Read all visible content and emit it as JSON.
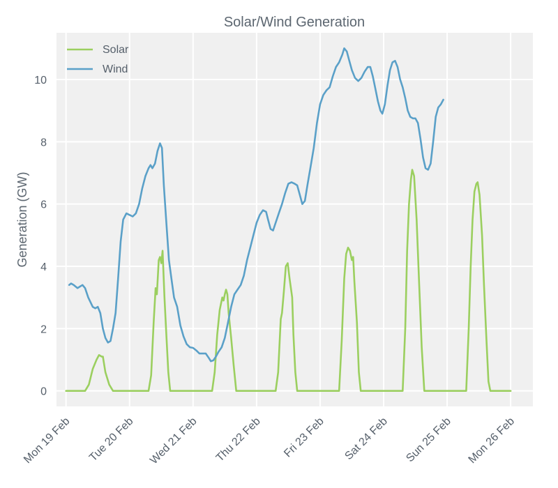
{
  "chart_data": {
    "type": "line",
    "title": "Solar/Wind Generation",
    "xlabel": "",
    "ylabel": "Generation (GW)",
    "ylim": [
      -0.5,
      11.5
    ],
    "xlim": [
      -0.15,
      7.35
    ],
    "yticks": [
      0,
      2,
      4,
      6,
      8,
      10
    ],
    "xticks": [
      {
        "value": 0,
        "label": "Mon 19 Feb"
      },
      {
        "value": 1,
        "label": "Tue 20 Feb"
      },
      {
        "value": 2,
        "label": "Wed 21 Feb"
      },
      {
        "value": 3,
        "label": "Thu 22 Feb"
      },
      {
        "value": 4,
        "label": "Fri 23 Feb"
      },
      {
        "value": 5,
        "label": "Sat 24 Feb"
      },
      {
        "value": 6,
        "label": "Sun 25 Feb"
      },
      {
        "value": 7,
        "label": "Mon 26 Feb"
      }
    ],
    "legend_position": "top-left",
    "grid": true,
    "series": [
      {
        "name": "Solar",
        "color": "#9bcf5f",
        "points": [
          [
            0.0,
            0
          ],
          [
            0.3,
            0
          ],
          [
            0.36,
            0.2
          ],
          [
            0.42,
            0.7
          ],
          [
            0.48,
            1.0
          ],
          [
            0.52,
            1.15
          ],
          [
            0.56,
            1.1
          ],
          [
            0.58,
            1.1
          ],
          [
            0.62,
            0.6
          ],
          [
            0.68,
            0.2
          ],
          [
            0.74,
            0
          ],
          [
            1.0,
            0
          ],
          [
            1.3,
            0
          ],
          [
            1.34,
            0.5
          ],
          [
            1.38,
            2.2
          ],
          [
            1.41,
            3.3
          ],
          [
            1.43,
            3.1
          ],
          [
            1.46,
            4.2
          ],
          [
            1.48,
            4.3
          ],
          [
            1.5,
            4.1
          ],
          [
            1.52,
            4.5
          ],
          [
            1.55,
            3.0
          ],
          [
            1.58,
            1.8
          ],
          [
            1.61,
            0.6
          ],
          [
            1.64,
            0
          ],
          [
            2.0,
            0
          ],
          [
            2.3,
            0
          ],
          [
            2.34,
            0.6
          ],
          [
            2.38,
            1.8
          ],
          [
            2.42,
            2.6
          ],
          [
            2.46,
            3.0
          ],
          [
            2.48,
            2.9
          ],
          [
            2.5,
            3.1
          ],
          [
            2.52,
            3.25
          ],
          [
            2.54,
            3.1
          ],
          [
            2.56,
            2.5
          ],
          [
            2.6,
            1.7
          ],
          [
            2.64,
            0.8
          ],
          [
            2.68,
            0
          ],
          [
            3.0,
            0
          ],
          [
            3.3,
            0
          ],
          [
            3.34,
            0.6
          ],
          [
            3.38,
            2.3
          ],
          [
            3.4,
            2.5
          ],
          [
            3.43,
            3.2
          ],
          [
            3.46,
            4.0
          ],
          [
            3.49,
            4.1
          ],
          [
            3.52,
            3.6
          ],
          [
            3.56,
            3.0
          ],
          [
            3.58,
            1.8
          ],
          [
            3.61,
            0.6
          ],
          [
            3.64,
            0
          ],
          [
            4.0,
            0
          ],
          [
            4.3,
            0
          ],
          [
            4.34,
            1.6
          ],
          [
            4.38,
            3.6
          ],
          [
            4.41,
            4.4
          ],
          [
            4.44,
            4.6
          ],
          [
            4.47,
            4.5
          ],
          [
            4.5,
            4.2
          ],
          [
            4.52,
            4.3
          ],
          [
            4.54,
            3.5
          ],
          [
            4.58,
            2.2
          ],
          [
            4.61,
            0.6
          ],
          [
            4.64,
            0
          ],
          [
            5.0,
            0
          ],
          [
            5.3,
            0
          ],
          [
            5.34,
            2.0
          ],
          [
            5.37,
            4.5
          ],
          [
            5.4,
            6.0
          ],
          [
            5.43,
            6.8
          ],
          [
            5.45,
            7.1
          ],
          [
            5.48,
            6.9
          ],
          [
            5.52,
            5.5
          ],
          [
            5.56,
            3.4
          ],
          [
            5.6,
            1.4
          ],
          [
            5.64,
            0
          ],
          [
            6.0,
            0
          ],
          [
            6.3,
            0
          ],
          [
            6.34,
            2.0
          ],
          [
            6.37,
            4.0
          ],
          [
            6.4,
            5.5
          ],
          [
            6.43,
            6.4
          ],
          [
            6.46,
            6.65
          ],
          [
            6.48,
            6.7
          ],
          [
            6.51,
            6.3
          ],
          [
            6.55,
            5.0
          ],
          [
            6.58,
            3.4
          ],
          [
            6.62,
            1.6
          ],
          [
            6.65,
            0.3
          ],
          [
            6.68,
            0
          ],
          [
            7.0,
            0
          ]
        ]
      },
      {
        "name": "Wind",
        "color": "#5aa0c8",
        "points": [
          [
            0.05,
            3.4
          ],
          [
            0.08,
            3.45
          ],
          [
            0.12,
            3.4
          ],
          [
            0.18,
            3.3
          ],
          [
            0.22,
            3.35
          ],
          [
            0.26,
            3.4
          ],
          [
            0.3,
            3.3
          ],
          [
            0.35,
            3.0
          ],
          [
            0.42,
            2.7
          ],
          [
            0.46,
            2.65
          ],
          [
            0.5,
            2.7
          ],
          [
            0.54,
            2.5
          ],
          [
            0.58,
            2.0
          ],
          [
            0.62,
            1.7
          ],
          [
            0.66,
            1.55
          ],
          [
            0.7,
            1.6
          ],
          [
            0.74,
            2.0
          ],
          [
            0.78,
            2.5
          ],
          [
            0.82,
            3.6
          ],
          [
            0.86,
            4.8
          ],
          [
            0.9,
            5.5
          ],
          [
            0.95,
            5.7
          ],
          [
            1.0,
            5.65
          ],
          [
            1.05,
            5.6
          ],
          [
            1.1,
            5.7
          ],
          [
            1.15,
            6.0
          ],
          [
            1.2,
            6.5
          ],
          [
            1.25,
            6.9
          ],
          [
            1.3,
            7.15
          ],
          [
            1.33,
            7.25
          ],
          [
            1.36,
            7.15
          ],
          [
            1.4,
            7.3
          ],
          [
            1.44,
            7.7
          ],
          [
            1.48,
            7.95
          ],
          [
            1.51,
            7.8
          ],
          [
            1.54,
            6.6
          ],
          [
            1.58,
            5.4
          ],
          [
            1.62,
            4.2
          ],
          [
            1.66,
            3.6
          ],
          [
            1.7,
            3.0
          ],
          [
            1.75,
            2.7
          ],
          [
            1.8,
            2.1
          ],
          [
            1.85,
            1.75
          ],
          [
            1.9,
            1.5
          ],
          [
            1.95,
            1.4
          ],
          [
            2.0,
            1.38
          ],
          [
            2.05,
            1.3
          ],
          [
            2.1,
            1.2
          ],
          [
            2.15,
            1.2
          ],
          [
            2.2,
            1.2
          ],
          [
            2.25,
            1.05
          ],
          [
            2.28,
            0.95
          ],
          [
            2.32,
            0.98
          ],
          [
            2.36,
            1.1
          ],
          [
            2.4,
            1.25
          ],
          [
            2.45,
            1.4
          ],
          [
            2.5,
            1.7
          ],
          [
            2.55,
            2.2
          ],
          [
            2.6,
            2.7
          ],
          [
            2.65,
            3.1
          ],
          [
            2.7,
            3.25
          ],
          [
            2.75,
            3.4
          ],
          [
            2.8,
            3.7
          ],
          [
            2.85,
            4.2
          ],
          [
            2.9,
            4.6
          ],
          [
            2.95,
            5.0
          ],
          [
            3.0,
            5.4
          ],
          [
            3.05,
            5.65
          ],
          [
            3.1,
            5.8
          ],
          [
            3.15,
            5.75
          ],
          [
            3.18,
            5.5
          ],
          [
            3.22,
            5.2
          ],
          [
            3.26,
            5.15
          ],
          [
            3.3,
            5.4
          ],
          [
            3.35,
            5.7
          ],
          [
            3.4,
            6.0
          ],
          [
            3.45,
            6.35
          ],
          [
            3.5,
            6.65
          ],
          [
            3.55,
            6.7
          ],
          [
            3.6,
            6.65
          ],
          [
            3.64,
            6.6
          ],
          [
            3.68,
            6.3
          ],
          [
            3.72,
            6.0
          ],
          [
            3.76,
            6.1
          ],
          [
            3.8,
            6.6
          ],
          [
            3.85,
            7.2
          ],
          [
            3.9,
            7.8
          ],
          [
            3.95,
            8.6
          ],
          [
            4.0,
            9.2
          ],
          [
            4.05,
            9.5
          ],
          [
            4.1,
            9.65
          ],
          [
            4.15,
            9.75
          ],
          [
            4.2,
            10.1
          ],
          [
            4.25,
            10.4
          ],
          [
            4.3,
            10.55
          ],
          [
            4.35,
            10.8
          ],
          [
            4.38,
            11.0
          ],
          [
            4.42,
            10.9
          ],
          [
            4.46,
            10.6
          ],
          [
            4.5,
            10.3
          ],
          [
            4.55,
            10.05
          ],
          [
            4.6,
            9.95
          ],
          [
            4.65,
            10.05
          ],
          [
            4.7,
            10.25
          ],
          [
            4.75,
            10.4
          ],
          [
            4.79,
            10.4
          ],
          [
            4.83,
            10.1
          ],
          [
            4.87,
            9.7
          ],
          [
            4.91,
            9.3
          ],
          [
            4.95,
            9.0
          ],
          [
            4.98,
            8.9
          ],
          [
            5.02,
            9.2
          ],
          [
            5.06,
            9.8
          ],
          [
            5.1,
            10.3
          ],
          [
            5.14,
            10.55
          ],
          [
            5.18,
            10.6
          ],
          [
            5.22,
            10.4
          ],
          [
            5.26,
            10.0
          ],
          [
            5.3,
            9.75
          ],
          [
            5.34,
            9.4
          ],
          [
            5.38,
            9.0
          ],
          [
            5.42,
            8.8
          ],
          [
            5.46,
            8.75
          ],
          [
            5.5,
            8.75
          ],
          [
            5.54,
            8.6
          ],
          [
            5.58,
            8.1
          ],
          [
            5.62,
            7.5
          ],
          [
            5.66,
            7.15
          ],
          [
            5.7,
            7.1
          ],
          [
            5.74,
            7.3
          ],
          [
            5.78,
            8.0
          ],
          [
            5.82,
            8.8
          ],
          [
            5.86,
            9.1
          ],
          [
            5.9,
            9.2
          ],
          [
            5.94,
            9.35
          ]
        ]
      }
    ]
  }
}
